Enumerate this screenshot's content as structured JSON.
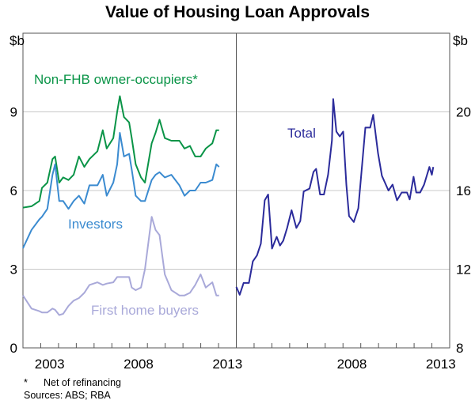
{
  "chart_data": [
    {
      "type": "line",
      "panel": "left",
      "title": "Value of Housing Loan Approvals",
      "ylabel": "$b",
      "ylim": [
        0,
        12
      ],
      "yticks": [
        0,
        3,
        6,
        9
      ],
      "xlim": [
        2002,
        2014
      ],
      "xticklabels": [
        "2003",
        "2008",
        "2013"
      ],
      "grid": true,
      "x": [
        2002.0,
        2002.48,
        2002.92,
        2003.07,
        2003.37,
        2003.66,
        2003.81,
        2004.04,
        2004.26,
        2004.56,
        2004.85,
        2005.15,
        2005.45,
        2005.74,
        2006.19,
        2006.49,
        2006.71,
        2007.08,
        2007.3,
        2007.45,
        2007.68,
        2007.97,
        2008.12,
        2008.34,
        2008.64,
        2008.86,
        2009.24,
        2009.46,
        2009.68,
        2009.98,
        2010.35,
        2010.8,
        2011.09,
        2011.39,
        2011.69,
        2011.99,
        2012.28,
        2012.65,
        2012.88,
        2013.03
      ],
      "series": [
        {
          "name": "Non-FHB owner-occupiers*",
          "color": "#0a9447",
          "values": [
            5.35,
            5.4,
            5.6,
            6.1,
            6.3,
            7.2,
            7.3,
            6.3,
            6.5,
            6.4,
            6.6,
            7.3,
            6.9,
            7.2,
            7.5,
            8.3,
            7.6,
            8.0,
            9.0,
            9.6,
            8.8,
            8.6,
            8.0,
            7.0,
            6.5,
            6.3,
            7.8,
            8.2,
            8.7,
            8.0,
            7.9,
            7.9,
            7.6,
            7.7,
            7.3,
            7.3,
            7.6,
            7.8,
            8.3,
            8.3
          ]
        },
        {
          "name": "Investors",
          "color": "#3b8bd0",
          "values": [
            3.8,
            4.5,
            4.9,
            5.0,
            5.3,
            6.6,
            7.0,
            5.6,
            5.6,
            5.3,
            5.6,
            5.8,
            5.5,
            6.2,
            6.2,
            6.6,
            5.8,
            6.3,
            7.0,
            8.2,
            7.3,
            7.4,
            6.8,
            5.8,
            5.6,
            5.6,
            6.4,
            6.6,
            6.7,
            6.5,
            6.6,
            6.2,
            5.8,
            6.0,
            6.0,
            6.3,
            6.3,
            6.4,
            7.0,
            6.9
          ]
        },
        {
          "name": "First home buyers",
          "color": "#a9a9d9",
          "values": [
            2.0,
            1.5,
            1.4,
            1.35,
            1.35,
            1.5,
            1.45,
            1.25,
            1.3,
            1.6,
            1.8,
            1.9,
            2.1,
            2.4,
            2.5,
            2.4,
            2.45,
            2.5,
            2.7,
            2.7,
            2.7,
            2.7,
            2.3,
            2.2,
            2.3,
            3.0,
            5.0,
            4.5,
            4.3,
            2.8,
            2.2,
            2.0,
            2.0,
            2.1,
            2.4,
            2.8,
            2.3,
            2.5,
            2.0,
            2.0
          ]
        }
      ]
    },
    {
      "type": "line",
      "panel": "right",
      "ylabel": "$b",
      "ylim": [
        8,
        24
      ],
      "yticks": [
        8,
        12,
        16,
        20
      ],
      "xlim": [
        2002,
        2014
      ],
      "xticklabels": [
        "2008",
        "2013"
      ],
      "grid": true,
      "x": [
        2002.0,
        2002.19,
        2002.41,
        2002.71,
        2002.93,
        2003.16,
        2003.38,
        2003.6,
        2003.79,
        2004.01,
        2004.27,
        2004.46,
        2004.64,
        2004.86,
        2005.11,
        2005.38,
        2005.6,
        2005.79,
        2006.12,
        2006.34,
        2006.49,
        2006.71,
        2006.93,
        2007.16,
        2007.38,
        2007.45,
        2007.63,
        2007.82,
        2008.01,
        2008.19,
        2008.34,
        2008.61,
        2008.86,
        2009.08,
        2009.26,
        2009.53,
        2009.7,
        2009.97,
        2010.19,
        2010.56,
        2010.79,
        2011.04,
        2011.3,
        2011.6,
        2011.75,
        2011.97,
        2012.12,
        2012.34,
        2012.56,
        2012.86,
        2013.0,
        2013.08
      ],
      "series": [
        {
          "name": "Total",
          "color": "#2b2b9b",
          "values": [
            11.1,
            10.7,
            11.3,
            11.3,
            12.4,
            12.7,
            13.3,
            15.5,
            15.8,
            13.05,
            13.65,
            13.2,
            13.45,
            14.1,
            15.0,
            14.1,
            14.45,
            15.95,
            16.1,
            16.95,
            17.1,
            15.8,
            15.8,
            16.8,
            18.55,
            20.65,
            19.0,
            18.75,
            19.0,
            16.3,
            14.7,
            14.4,
            15.1,
            17.35,
            19.2,
            19.2,
            19.85,
            17.9,
            16.75,
            16.0,
            16.3,
            15.5,
            15.9,
            15.9,
            15.55,
            16.7,
            15.9,
            15.9,
            16.3,
            17.2,
            16.8,
            17.2
          ]
        }
      ]
    }
  ],
  "footnotes": {
    "marker": "*",
    "note": "Net of refinancing",
    "sources": "Sources: ABS; RBA"
  }
}
